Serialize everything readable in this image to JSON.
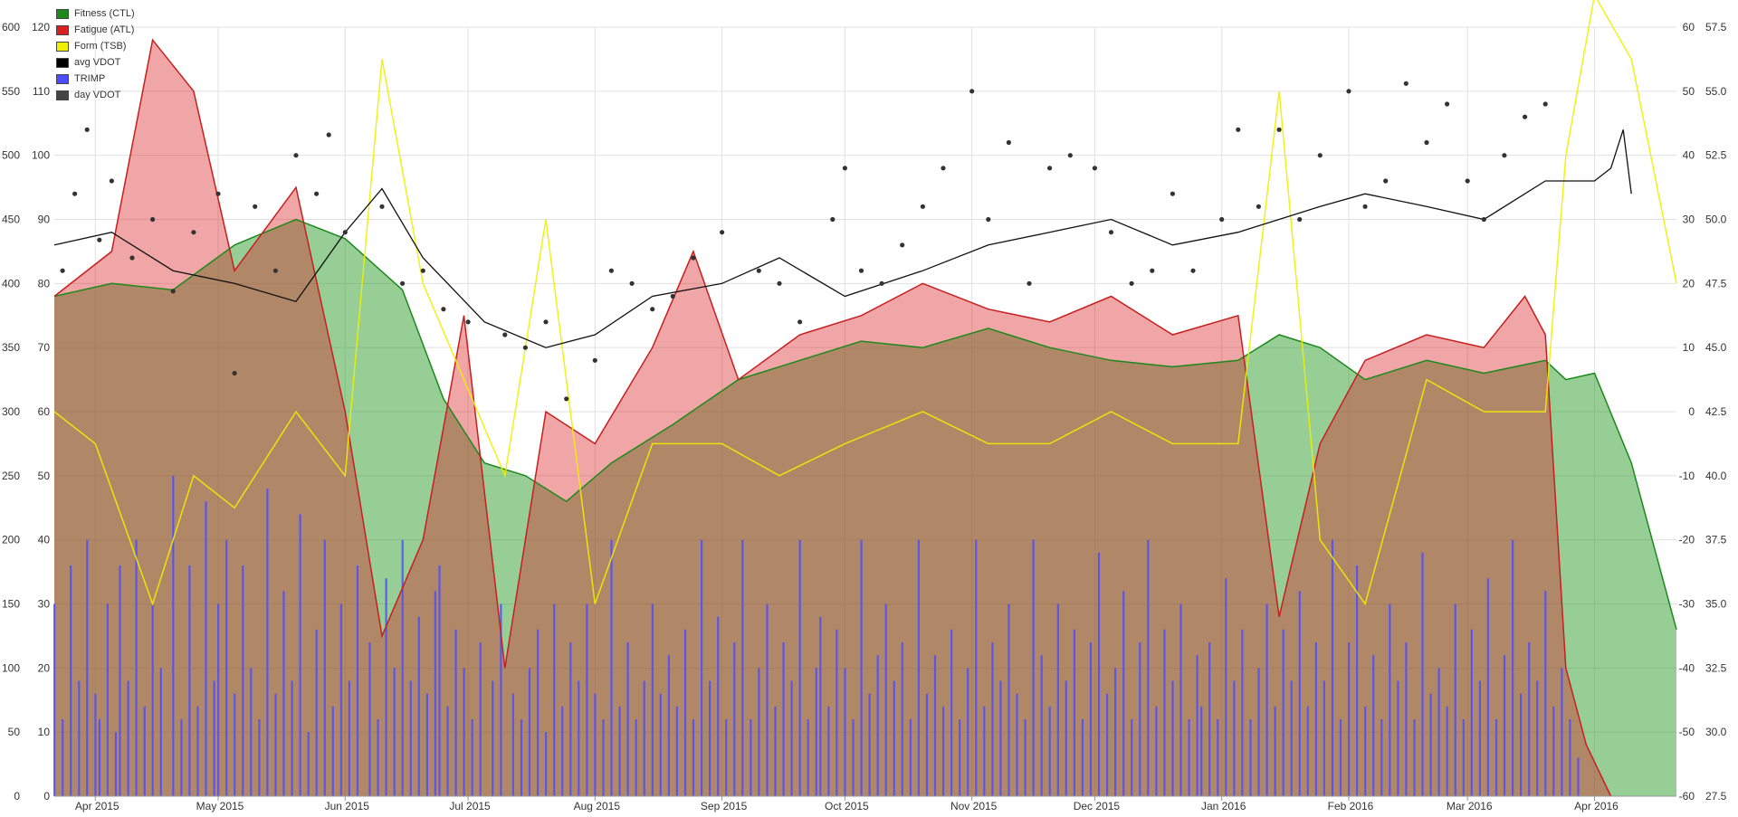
{
  "chart_data": {
    "type": "area",
    "legend": [
      {
        "label": "Fitness (CTL)",
        "color": "#1b8a1b"
      },
      {
        "label": "Fatigue (ATL)",
        "color": "#d92020"
      },
      {
        "label": "Form (TSB)",
        "color": "#f0f000"
      },
      {
        "label": "avg VDOT",
        "color": "#000000"
      },
      {
        "label": "TRIMP",
        "color": "#4d4dff"
      },
      {
        "label": "day VDOT",
        "color": "#444444"
      }
    ],
    "legend_position": "top-left",
    "grid": true,
    "x_ticks": [
      "Apr 2015",
      "May 2015",
      "Jun 2015",
      "Jul 2015",
      "Aug 2015",
      "Sep 2015",
      "Oct 2015",
      "Nov 2015",
      "Dec 2015",
      "Jan 2016",
      "Feb 2016",
      "Mar 2016",
      "Apr 2016"
    ],
    "y_axes": {
      "trimp": {
        "ticks": [
          "0",
          "50",
          "100",
          "150",
          "200",
          "250",
          "300",
          "350",
          "400",
          "450",
          "500",
          "550",
          "600"
        ],
        "range": [
          0,
          600
        ]
      },
      "load": {
        "ticks": [
          "0",
          "10",
          "20",
          "30",
          "40",
          "50",
          "60",
          "70",
          "80",
          "90",
          "100",
          "110",
          "120"
        ],
        "range": [
          0,
          120
        ]
      },
      "form": {
        "ticks": [
          "-60",
          "-50",
          "-40",
          "-30",
          "-20",
          "-10",
          "0",
          "10",
          "20",
          "30",
          "40",
          "50",
          "60"
        ],
        "range": [
          -60,
          60
        ]
      },
      "vdot": {
        "ticks": [
          "27.5",
          "30.0",
          "32.5",
          "35.0",
          "37.5",
          "40.0",
          "42.5",
          "45.0",
          "47.5",
          "50.0",
          "52.5",
          "55.0",
          "57.5"
        ],
        "range": [
          27.5,
          57.5
        ]
      }
    },
    "x_range_days": [
      "2015-03-22",
      "2016-04-21"
    ],
    "series": [
      {
        "name": "Fitness (CTL)",
        "axis": "load",
        "x": [
          "2015-03-22",
          "2015-04-05",
          "2015-04-20",
          "2015-05-05",
          "2015-05-20",
          "2015-06-01",
          "2015-06-15",
          "2015-06-25",
          "2015-07-05",
          "2015-07-15",
          "2015-07-25",
          "2015-08-05",
          "2015-08-20",
          "2015-09-05",
          "2015-09-20",
          "2015-10-05",
          "2015-10-20",
          "2015-11-05",
          "2015-11-20",
          "2015-12-05",
          "2015-12-20",
          "2016-01-05",
          "2016-01-15",
          "2016-01-25",
          "2016-02-05",
          "2016-02-20",
          "2016-03-05",
          "2016-03-20",
          "2016-03-25",
          "2016-04-01",
          "2016-04-10",
          "2016-04-21"
        ],
        "values": [
          78,
          80,
          79,
          86,
          90,
          87,
          79,
          62,
          52,
          50,
          46,
          52,
          58,
          65,
          68,
          71,
          70,
          73,
          70,
          68,
          67,
          68,
          72,
          70,
          65,
          68,
          66,
          68,
          65,
          66,
          52,
          26
        ]
      },
      {
        "name": "Fatigue (ATL)",
        "axis": "load",
        "x": [
          "2015-03-22",
          "2015-04-05",
          "2015-04-15",
          "2015-04-25",
          "2015-05-05",
          "2015-05-20",
          "2015-06-01",
          "2015-06-10",
          "2015-06-20",
          "2015-06-30",
          "2015-07-10",
          "2015-07-20",
          "2015-08-01",
          "2015-08-15",
          "2015-08-25",
          "2015-09-05",
          "2015-09-20",
          "2015-10-05",
          "2015-10-20",
          "2015-11-05",
          "2015-11-20",
          "2015-12-05",
          "2015-12-20",
          "2016-01-05",
          "2016-01-15",
          "2016-01-25",
          "2016-02-05",
          "2016-02-20",
          "2016-03-05",
          "2016-03-15",
          "2016-03-20",
          "2016-03-25",
          "2016-03-30",
          "2016-04-05"
        ],
        "values": [
          78,
          85,
          118,
          110,
          82,
          95,
          60,
          25,
          40,
          75,
          20,
          60,
          55,
          70,
          85,
          65,
          72,
          75,
          80,
          76,
          74,
          78,
          72,
          75,
          28,
          55,
          68,
          72,
          70,
          78,
          72,
          20,
          8,
          0
        ]
      },
      {
        "name": "Form (TSB)",
        "axis": "form",
        "x": [
          "2015-03-22",
          "2015-04-01",
          "2015-04-15",
          "2015-04-25",
          "2015-05-05",
          "2015-05-20",
          "2015-06-01",
          "2015-06-10",
          "2015-06-20",
          "2015-06-30",
          "2015-07-10",
          "2015-07-20",
          "2015-08-01",
          "2015-08-15",
          "2015-09-01",
          "2015-09-15",
          "2015-10-01",
          "2015-10-20",
          "2015-11-05",
          "2015-11-20",
          "2015-12-05",
          "2015-12-20",
          "2016-01-05",
          "2016-01-15",
          "2016-01-25",
          "2016-02-05",
          "2016-02-20",
          "2016-03-05",
          "2016-03-20",
          "2016-03-25",
          "2016-04-01",
          "2016-04-10",
          "2016-04-21"
        ],
        "values": [
          0,
          -5,
          -30,
          -10,
          -15,
          0,
          -10,
          55,
          20,
          5,
          -10,
          30,
          -30,
          -5,
          -5,
          -10,
          -5,
          0,
          -5,
          -5,
          0,
          -5,
          -5,
          50,
          -20,
          -30,
          5,
          0,
          0,
          40,
          65,
          55,
          20
        ]
      },
      {
        "name": "avg VDOT",
        "axis": "vdot",
        "x": [
          "2015-03-22",
          "2015-04-05",
          "2015-04-20",
          "2015-05-05",
          "2015-05-20",
          "2015-06-01",
          "2015-06-10",
          "2015-06-20",
          "2015-07-05",
          "2015-07-20",
          "2015-08-01",
          "2015-08-15",
          "2015-09-01",
          "2015-09-15",
          "2015-10-01",
          "2015-10-20",
          "2015-11-05",
          "2015-11-20",
          "2015-12-05",
          "2015-12-20",
          "2016-01-05",
          "2016-01-15",
          "2016-01-25",
          "2016-02-05",
          "2016-02-20",
          "2016-03-05",
          "2016-03-20",
          "2016-03-25",
          "2016-04-01",
          "2016-04-05",
          "2016-04-08",
          "2016-04-10"
        ],
        "values": [
          49.0,
          49.5,
          48.0,
          47.5,
          46.8,
          49.5,
          51.2,
          48.5,
          46.0,
          45.0,
          45.5,
          47.0,
          47.5,
          48.5,
          47.0,
          48.0,
          49.0,
          49.5,
          50.0,
          49.0,
          49.5,
          50.0,
          50.5,
          51.0,
          50.5,
          50.0,
          51.5,
          51.5,
          51.5,
          52.0,
          53.5,
          51.0
        ]
      },
      {
        "name": "TRIMP",
        "axis": "trimp",
        "x_start": "2015-03-22",
        "x_end": "2016-03-28",
        "values": [
          0,
          150,
          0,
          60,
          0,
          180,
          0,
          90,
          0,
          200,
          0,
          80,
          60,
          0,
          150,
          0,
          50,
          180,
          0,
          90,
          0,
          200,
          0,
          70,
          0,
          150,
          0,
          100,
          0,
          0,
          250,
          0,
          60,
          0,
          180,
          0,
          70,
          0,
          230,
          0,
          90,
          150,
          0,
          200,
          0,
          80,
          0,
          180,
          0,
          100,
          0,
          60,
          0,
          240,
          0,
          80,
          0,
          160,
          0,
          90,
          0,
          220,
          0,
          50,
          0,
          130,
          0,
          200,
          0,
          70,
          0,
          150,
          0,
          90,
          0,
          180,
          0,
          0,
          120,
          0,
          60,
          0,
          170,
          0,
          100,
          0,
          200,
          0,
          90,
          0,
          140,
          0,
          80,
          0,
          160,
          0,
          180,
          0,
          70,
          0,
          130,
          0,
          100,
          0,
          60,
          0,
          120,
          0,
          0,
          90,
          0,
          150,
          0,
          0,
          80,
          0,
          60,
          0,
          100,
          0,
          130,
          0,
          50,
          0,
          150,
          0,
          70,
          0,
          120,
          0,
          90,
          0,
          150,
          0,
          80,
          0,
          60,
          0,
          200,
          0,
          70,
          0,
          120,
          0,
          60,
          0,
          90,
          0,
          150,
          0,
          80,
          0,
          110,
          0,
          70,
          0,
          130,
          0,
          60,
          0,
          200,
          0,
          90,
          0,
          140,
          0,
          60,
          0,
          120,
          0,
          200,
          0,
          60,
          0,
          100,
          0,
          150,
          0,
          70,
          0,
          120,
          0,
          90,
          0,
          200,
          0,
          60,
          0,
          100,
          0,
          140,
          0,
          70,
          0,
          130,
          0,
          100,
          0,
          60,
          0,
          200,
          0,
          80,
          0,
          110,
          0,
          150,
          0,
          90,
          0,
          120,
          0,
          60,
          0,
          200,
          0,
          80,
          0,
          110,
          0,
          70,
          0,
          130,
          0,
          60,
          0,
          100,
          0,
          200,
          0,
          70,
          0,
          120,
          0,
          90,
          0,
          150,
          0,
          80,
          0,
          60,
          0,
          200,
          0,
          110,
          0,
          70,
          0,
          150,
          0,
          90,
          0,
          130,
          0,
          60,
          0,
          120,
          0,
          190,
          0,
          80,
          0,
          100,
          0,
          160,
          0,
          60,
          0,
          120,
          0,
          200,
          0,
          70,
          0,
          130,
          0,
          90,
          0,
          150,
          0,
          60,
          0,
          110,
          0,
          70,
          0,
          120,
          0,
          60,
          0,
          170,
          0,
          90,
          0,
          130,
          0,
          60,
          0,
          100,
          0,
          150,
          0,
          70,
          0,
          130,
          0,
          90,
          0,
          160,
          0,
          70,
          0,
          120,
          0,
          90,
          0,
          200,
          0,
          60,
          0,
          120,
          0,
          180,
          0,
          70,
          0,
          110,
          0,
          60,
          0,
          150,
          0,
          90,
          0,
          120,
          0,
          60,
          0,
          190,
          0,
          80,
          0,
          100,
          0,
          70,
          0,
          150,
          0,
          60,
          0,
          130,
          0,
          90,
          0,
          170,
          0,
          60,
          0,
          110,
          0,
          200,
          0,
          80,
          0,
          120,
          0,
          90,
          0,
          160,
          0,
          70,
          0,
          100,
          0,
          60,
          0,
          30
        ]
      },
      {
        "name": "day VDOT",
        "axis": "vdot",
        "points": [
          [
            "2015-03-24",
            48.0
          ],
          [
            "2015-03-27",
            51.0
          ],
          [
            "2015-03-30",
            53.5
          ],
          [
            "2015-04-02",
            49.2
          ],
          [
            "2015-04-05",
            51.5
          ],
          [
            "2015-04-10",
            48.5
          ],
          [
            "2015-04-15",
            50.0
          ],
          [
            "2015-04-20",
            47.2
          ],
          [
            "2015-04-25",
            49.5
          ],
          [
            "2015-05-01",
            51.0
          ],
          [
            "2015-05-05",
            44.0
          ],
          [
            "2015-05-10",
            50.5
          ],
          [
            "2015-05-15",
            48.0
          ],
          [
            "2015-05-20",
            52.5
          ],
          [
            "2015-05-25",
            51.0
          ],
          [
            "2015-05-28",
            53.3
          ],
          [
            "2015-06-01",
            49.5
          ],
          [
            "2015-06-10",
            50.5
          ],
          [
            "2015-06-15",
            47.5
          ],
          [
            "2015-06-20",
            48.0
          ],
          [
            "2015-06-25",
            46.5
          ],
          [
            "2015-07-01",
            46.0
          ],
          [
            "2015-07-10",
            45.5
          ],
          [
            "2015-07-15",
            45.0
          ],
          [
            "2015-07-20",
            46.0
          ],
          [
            "2015-07-25",
            43.0
          ],
          [
            "2015-08-01",
            44.5
          ],
          [
            "2015-08-05",
            48.0
          ],
          [
            "2015-08-10",
            47.5
          ],
          [
            "2015-08-15",
            46.5
          ],
          [
            "2015-08-20",
            47.0
          ],
          [
            "2015-08-25",
            48.5
          ],
          [
            "2015-09-01",
            49.5
          ],
          [
            "2015-09-10",
            48.0
          ],
          [
            "2015-09-15",
            47.5
          ],
          [
            "2015-09-20",
            46.0
          ],
          [
            "2015-09-28",
            50.0
          ],
          [
            "2015-10-01",
            52.0
          ],
          [
            "2015-10-05",
            48.0
          ],
          [
            "2015-10-10",
            47.5
          ],
          [
            "2015-10-15",
            49.0
          ],
          [
            "2015-10-20",
            50.5
          ],
          [
            "2015-10-25",
            52.0
          ],
          [
            "2015-11-01",
            55.0
          ],
          [
            "2015-11-05",
            50.0
          ],
          [
            "2015-11-10",
            53.0
          ],
          [
            "2015-11-15",
            47.5
          ],
          [
            "2015-11-20",
            52.0
          ],
          [
            "2015-11-25",
            52.5
          ],
          [
            "2015-12-01",
            52.0
          ],
          [
            "2015-12-05",
            49.5
          ],
          [
            "2015-12-10",
            47.5
          ],
          [
            "2015-12-15",
            48.0
          ],
          [
            "2015-12-20",
            51.0
          ],
          [
            "2015-12-25",
            48.0
          ],
          [
            "2016-01-01",
            50.0
          ],
          [
            "2016-01-05",
            53.5
          ],
          [
            "2016-01-10",
            50.5
          ],
          [
            "2016-01-15",
            53.5
          ],
          [
            "2016-01-20",
            50.0
          ],
          [
            "2016-01-25",
            52.5
          ],
          [
            "2016-02-01",
            55.0
          ],
          [
            "2016-02-05",
            50.5
          ],
          [
            "2016-02-10",
            51.5
          ],
          [
            "2016-02-15",
            55.3
          ],
          [
            "2016-02-20",
            53.0
          ],
          [
            "2016-02-25",
            54.5
          ],
          [
            "2016-03-01",
            51.5
          ],
          [
            "2016-03-05",
            50.0
          ],
          [
            "2016-03-10",
            52.5
          ],
          [
            "2016-03-15",
            54.0
          ],
          [
            "2016-03-20",
            54.5
          ]
        ]
      }
    ]
  }
}
